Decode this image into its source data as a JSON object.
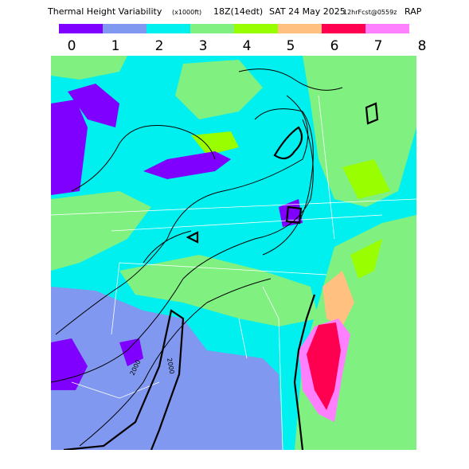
{
  "header": {
    "title": "Thermal Height Variability",
    "units": "(x1000ft)",
    "time": "18Z(14edt)",
    "date": "SAT 24 May 2025",
    "forecast": "12hrFcst@0559z",
    "model": "RAP"
  },
  "legend": {
    "colors": [
      "#7f00ff",
      "#8098f0",
      "#00f0f0",
      "#80f080",
      "#99ff00",
      "#ffc080",
      "#ff0050",
      "#ff80ff"
    ],
    "labels": [
      0,
      1,
      2,
      3,
      4,
      5,
      6,
      7,
      8
    ]
  },
  "map": {
    "contour_labels": [
      "2000",
      "2000"
    ]
  }
}
